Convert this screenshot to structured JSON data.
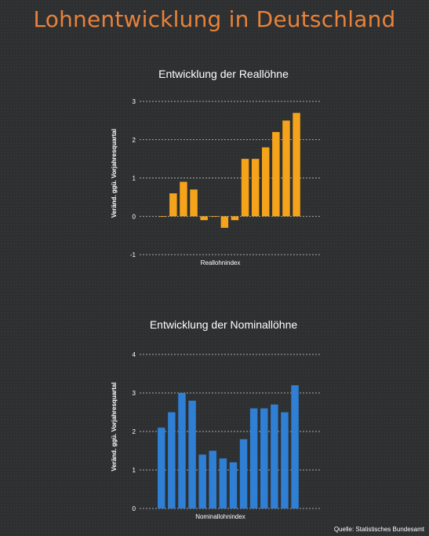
{
  "page": {
    "title": "Lohnentwicklung in Deutschland",
    "source": "Quelle: Statistisches Bundesamt",
    "background": "#2e2f31",
    "title_color": "#e8823a"
  },
  "chart_data": [
    {
      "type": "bar",
      "title": "Entwicklung der Reallöhne",
      "xlabel": "Reallohnindex",
      "ylabel": "Veränd. ggü. Vorjahresquartal",
      "color": "#f5a31a",
      "ylim": [
        -1,
        3
      ],
      "yticks": [
        -1,
        0,
        1,
        2,
        3
      ],
      "grid": true,
      "legend": "none",
      "values": [
        0,
        0.6,
        0.9,
        0.7,
        -0.1,
        0,
        -0.3,
        -0.1,
        1.5,
        1.5,
        1.8,
        2.2,
        2.5,
        2.7
      ]
    },
    {
      "type": "bar",
      "title": "Entwicklung der Nominallöhne",
      "xlabel": "Nominallohnindex",
      "ylabel": "Veränd. ggü. Vorjahresquartal",
      "color": "#2f7fd4",
      "ylim": [
        0,
        4
      ],
      "yticks": [
        0,
        1,
        2,
        3,
        4
      ],
      "grid": true,
      "legend": "none",
      "values": [
        2.1,
        2.5,
        3.0,
        2.8,
        1.4,
        1.5,
        1.3,
        1.2,
        1.8,
        2.6,
        2.6,
        2.7,
        2.5,
        3.2
      ]
    }
  ]
}
